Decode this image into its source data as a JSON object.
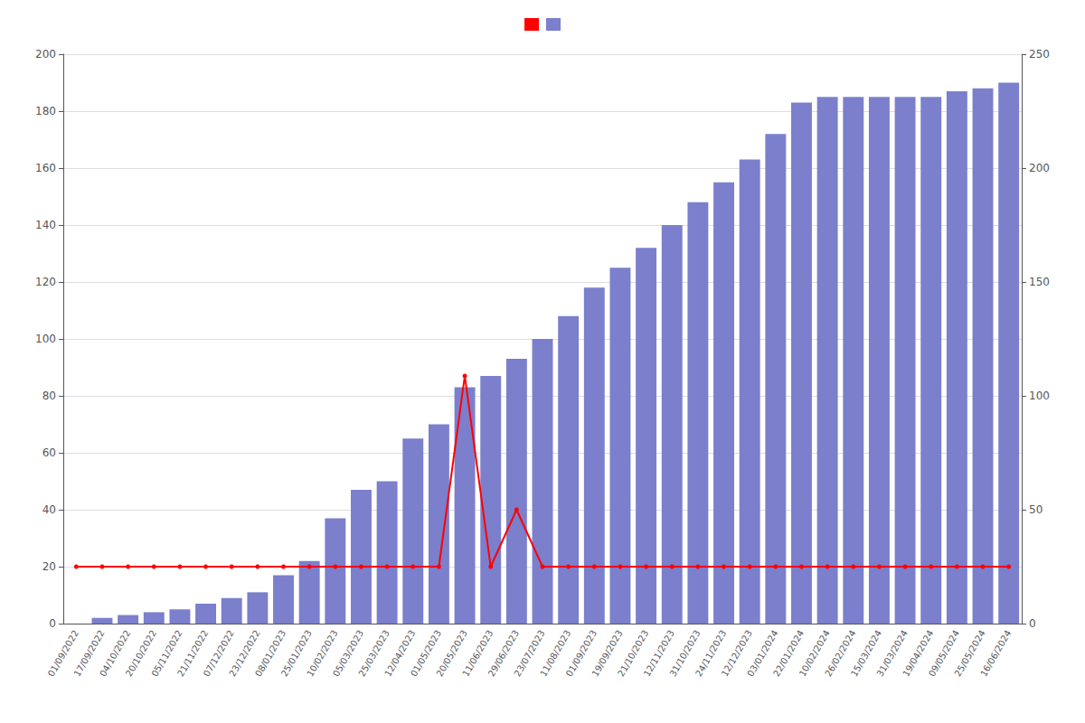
{
  "chart_data": {
    "type": "bar",
    "categories": [
      "01/09/2022",
      "17/09/2022",
      "04/10/2022",
      "20/10/2022",
      "05/11/2022",
      "21/11/2022",
      "07/12/2022",
      "23/12/2022",
      "08/01/2023",
      "25/01/2023",
      "10/02/2023",
      "05/03/2023",
      "25/03/2023",
      "12/04/2023",
      "01/05/2023",
      "20/05/2023",
      "11/06/2023",
      "29/06/2023",
      "23/07/2023",
      "11/08/2023",
      "01/09/2023",
      "19/09/2023",
      "21/10/2023",
      "12/11/2023",
      "31/10/2023",
      "24/11/2023",
      "12/12/2023",
      "03/01/2024",
      "22/01/2024",
      "10/02/2024",
      "26/02/2024",
      "15/03/2024",
      "31/03/2024",
      "19/04/2024",
      "09/05/2024",
      "25/05/2024",
      "16/06/2024"
    ],
    "series": [
      {
        "type": "bar",
        "color": "#7B7FCC",
        "values": [
          0,
          2,
          3,
          4,
          5,
          7,
          9,
          11,
          17,
          22,
          37,
          47,
          50,
          65,
          70,
          83,
          87,
          93,
          100,
          108,
          118,
          125,
          132,
          140,
          148,
          155,
          163,
          172,
          183,
          185,
          185,
          185,
          185,
          185,
          187,
          188,
          190
        ]
      },
      {
        "type": "line",
        "color": "#FF0000",
        "marker": "circle",
        "values": [
          20,
          20,
          20,
          20,
          20,
          20,
          20,
          20,
          20,
          20,
          20,
          20,
          20,
          20,
          20,
          87,
          20,
          40,
          20,
          20,
          20,
          20,
          20,
          20,
          20,
          20,
          20,
          20,
          20,
          20,
          20,
          20,
          20,
          20,
          20,
          20,
          20
        ]
      }
    ],
    "ylim": [
      0,
      200
    ],
    "yticks": [
      0,
      20,
      40,
      60,
      80,
      100,
      120,
      140,
      160,
      180,
      200
    ],
    "y2lim": [
      0,
      250
    ],
    "y2ticks": [
      0,
      50,
      100,
      150,
      200,
      250
    ],
    "grid": true,
    "legend": "top"
  }
}
